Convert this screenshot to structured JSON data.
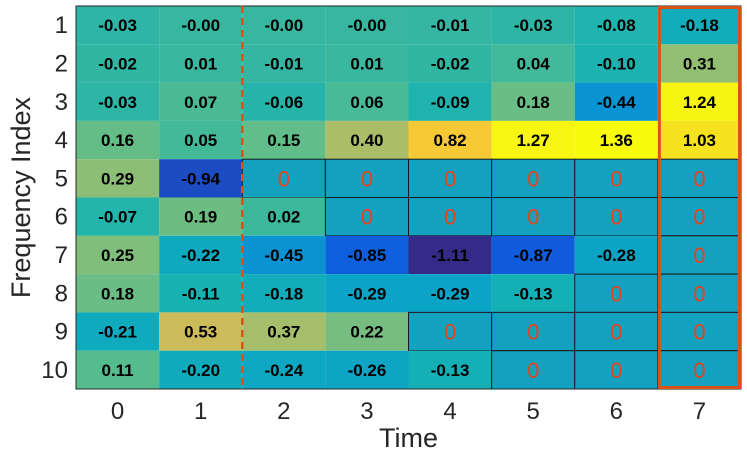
{
  "chart_data": {
    "type": "heatmap",
    "title": "",
    "xlabel": "Time",
    "ylabel": "Frequency Index",
    "x_categories": [
      "0",
      "1",
      "2",
      "3",
      "4",
      "5",
      "6",
      "7"
    ],
    "y_categories": [
      "1",
      "2",
      "3",
      "4",
      "5",
      "6",
      "7",
      "8",
      "9",
      "10"
    ],
    "value_range": [
      -1.11,
      1.36
    ],
    "values": [
      [
        -0.03,
        -0.0,
        -0.0,
        -0.0,
        -0.01,
        -0.03,
        -0.08,
        -0.18
      ],
      [
        -0.02,
        0.01,
        -0.01,
        0.01,
        -0.02,
        0.04,
        -0.1,
        0.31
      ],
      [
        -0.03,
        0.07,
        -0.06,
        0.06,
        -0.09,
        0.18,
        -0.44,
        1.24
      ],
      [
        0.16,
        0.05,
        0.15,
        0.4,
        0.82,
        1.27,
        1.36,
        1.03
      ],
      [
        0.29,
        -0.94,
        0,
        0,
        0,
        0,
        0,
        0
      ],
      [
        -0.07,
        0.19,
        0.02,
        0,
        0,
        0,
        0,
        0
      ],
      [
        0.25,
        -0.22,
        -0.45,
        -0.85,
        -1.11,
        -0.87,
        -0.28,
        0
      ],
      [
        0.18,
        -0.11,
        -0.18,
        -0.29,
        -0.29,
        -0.13,
        0,
        0
      ],
      [
        -0.21,
        0.53,
        0.37,
        0.22,
        0,
        0,
        0,
        0
      ],
      [
        0.11,
        -0.2,
        -0.24,
        -0.26,
        -0.13,
        0,
        0,
        0
      ]
    ],
    "labels": [
      [
        "-0.03",
        "-0.00",
        "-0.00",
        "-0.00",
        "-0.01",
        "-0.03",
        "-0.08",
        "-0.18"
      ],
      [
        "-0.02",
        "0.01",
        "-0.01",
        "0.01",
        "-0.02",
        "0.04",
        "-0.10",
        "0.31"
      ],
      [
        "-0.03",
        "0.07",
        "-0.06",
        "0.06",
        "-0.09",
        "0.18",
        "-0.44",
        "1.24"
      ],
      [
        "0.16",
        "0.05",
        "0.15",
        "0.40",
        "0.82",
        "1.27",
        "1.36",
        "1.03"
      ],
      [
        "0.29",
        "-0.94",
        "0",
        "0",
        "0",
        "0",
        "0",
        "0"
      ],
      [
        "-0.07",
        "0.19",
        "0.02",
        "0",
        "0",
        "0",
        "0",
        "0"
      ],
      [
        "0.25",
        "-0.22",
        "-0.45",
        "-0.85",
        "-1.11",
        "-0.87",
        "-0.28",
        "0"
      ],
      [
        "0.18",
        "-0.11",
        "-0.18",
        "-0.29",
        "-0.29",
        "-0.13",
        "0",
        "0"
      ],
      [
        "-0.21",
        "0.53",
        "0.37",
        "0.22",
        "0",
        "0",
        "0",
        "0"
      ],
      [
        "0.11",
        "-0.20",
        "-0.24",
        "-0.26",
        "-0.13",
        "0",
        "0",
        "0"
      ]
    ],
    "masked_cells": [
      [
        false,
        false,
        false,
        false,
        false,
        false,
        false,
        false
      ],
      [
        false,
        false,
        false,
        false,
        false,
        false,
        false,
        false
      ],
      [
        false,
        false,
        false,
        false,
        false,
        false,
        false,
        false
      ],
      [
        false,
        false,
        false,
        false,
        false,
        false,
        false,
        false
      ],
      [
        false,
        false,
        true,
        true,
        true,
        true,
        true,
        true
      ],
      [
        false,
        false,
        false,
        true,
        true,
        true,
        true,
        true
      ],
      [
        false,
        false,
        false,
        false,
        false,
        false,
        false,
        true
      ],
      [
        false,
        false,
        false,
        false,
        false,
        false,
        true,
        true
      ],
      [
        false,
        false,
        false,
        false,
        true,
        true,
        true,
        true
      ],
      [
        false,
        false,
        false,
        false,
        false,
        true,
        true,
        true
      ]
    ],
    "colormap": "parula",
    "masked_cell_color": "#14a1c0",
    "masked_text_color": "#e8421a",
    "value_text_color": "#000000",
    "divider_color": "#d95319",
    "highlight_color": "#d95319",
    "divider_after_column": "1",
    "highlight_column": "7",
    "grid": false,
    "legend": "none"
  }
}
